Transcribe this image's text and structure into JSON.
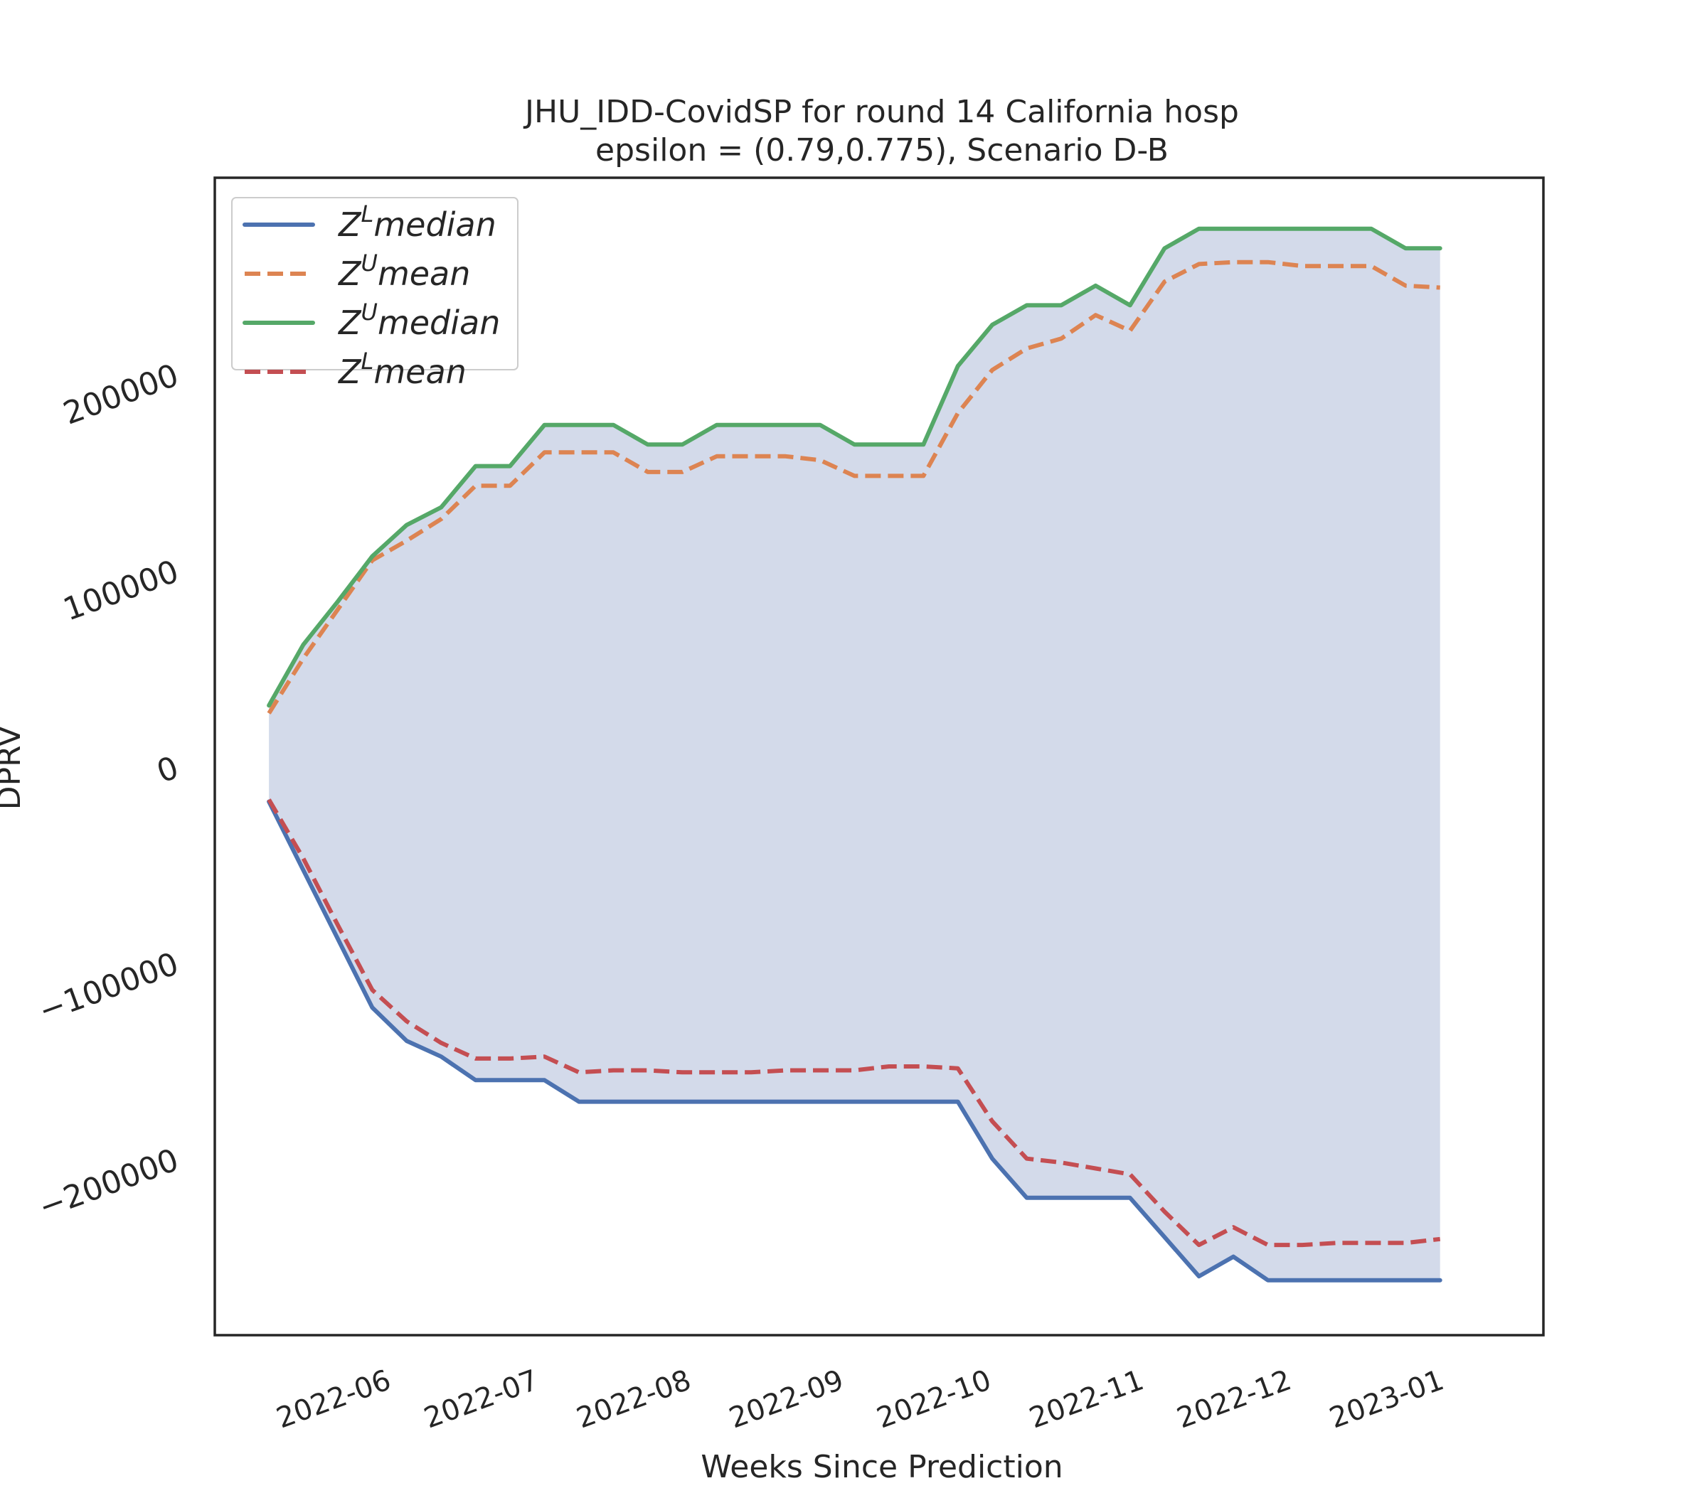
{
  "chart_data": {
    "type": "line",
    "title": "JHU_IDD-CovidSP for round 14 California  hosp",
    "subtitle": "epsilon = (0.79,0.775), Scenario D-B",
    "xlabel": "Weeks Since Prediction",
    "ylabel": "DPRV",
    "x_tick_labels": [
      "2022-06",
      "2022-07",
      "2022-08",
      "2022-09",
      "2022-10",
      "2022-11",
      "2022-12",
      "2023-01"
    ],
    "x_tick_dates": [
      "2022-06-01",
      "2022-07-01",
      "2022-08-01",
      "2022-09-01",
      "2022-10-01",
      "2022-11-01",
      "2022-12-01",
      "2023-01-01"
    ],
    "y_tick_labels": [
      "−200000",
      "−100000",
      "0",
      "100000",
      "200000"
    ],
    "y_tick_values": [
      -200000,
      -100000,
      0,
      100000,
      200000
    ],
    "xlim": [
      "2022-04-27",
      "2023-01-22"
    ],
    "ylim": [
      -290000,
      300000
    ],
    "grid": false,
    "legend_position": "upper-left",
    "x": [
      "2022-05-08",
      "2022-05-15",
      "2022-05-22",
      "2022-05-29",
      "2022-06-05",
      "2022-06-12",
      "2022-06-19",
      "2022-06-26",
      "2022-07-03",
      "2022-07-10",
      "2022-07-17",
      "2022-07-24",
      "2022-07-31",
      "2022-08-07",
      "2022-08-14",
      "2022-08-21",
      "2022-08-28",
      "2022-09-04",
      "2022-09-11",
      "2022-09-18",
      "2022-09-25",
      "2022-10-02",
      "2022-10-09",
      "2022-10-16",
      "2022-10-23",
      "2022-10-30",
      "2022-11-06",
      "2022-11-13",
      "2022-11-20",
      "2022-11-27",
      "2022-12-04",
      "2022-12-11",
      "2022-12-18",
      "2022-12-25",
      "2023-01-01"
    ],
    "series": [
      {
        "name": "Z^L median",
        "color": "#4c72b0",
        "style": "solid",
        "values": [
          -18000,
          -53000,
          -88000,
          -123000,
          -140000,
          -148000,
          -160000,
          -160000,
          -160000,
          -171000,
          -171000,
          -171000,
          -171000,
          -171000,
          -171000,
          -171000,
          -171000,
          -171000,
          -171000,
          -171000,
          -171000,
          -200000,
          -220000,
          -220000,
          -220000,
          -220000,
          -240000,
          -260000,
          -250000,
          -262000,
          -262000,
          -262000,
          -262000,
          -262000,
          -262000
        ]
      },
      {
        "name": "Z^U mean",
        "color": "#dd8452",
        "style": "dashed",
        "values": [
          27000,
          55000,
          80000,
          105000,
          115000,
          126000,
          143000,
          143000,
          160000,
          160000,
          160000,
          150000,
          150000,
          158000,
          158000,
          158000,
          156000,
          148000,
          148000,
          148000,
          180000,
          202000,
          213000,
          218000,
          230000,
          222000,
          247000,
          256000,
          257000,
          257000,
          255000,
          255000,
          255000,
          245000,
          244000
        ]
      },
      {
        "name": "Z^U median",
        "color": "#55a868",
        "style": "solid",
        "values": [
          31000,
          62000,
          84000,
          107000,
          123000,
          132000,
          153000,
          153000,
          174000,
          174000,
          174000,
          164000,
          164000,
          174000,
          174000,
          174000,
          174000,
          164000,
          164000,
          164000,
          204000,
          225000,
          235000,
          235000,
          245000,
          235000,
          264000,
          274000,
          274000,
          274000,
          274000,
          274000,
          274000,
          264000,
          264000
        ]
      },
      {
        "name": "Z^L mean",
        "color": "#c44e52",
        "style": "dashed",
        "values": [
          -17000,
          -47000,
          -81000,
          -114000,
          -130000,
          -141000,
          -149000,
          -149000,
          -148000,
          -156000,
          -155000,
          -155000,
          -156000,
          -156000,
          -156000,
          -155000,
          -155000,
          -155000,
          -153000,
          -153000,
          -154000,
          -181000,
          -200000,
          -202000,
          -205000,
          -208000,
          -227000,
          -244000,
          -235000,
          -244000,
          -244000,
          -243000,
          -243000,
          -243000,
          -241000
        ]
      }
    ],
    "fill_between": {
      "lower": "Z^L median",
      "upper": "Z^U median",
      "color": "#d3daea"
    },
    "legend": [
      {
        "base": "Z",
        "sup": "L",
        "rest": "median",
        "color": "#4c72b0",
        "style": "solid"
      },
      {
        "base": "Z",
        "sup": "U",
        "rest": "mean",
        "color": "#dd8452",
        "style": "dashed"
      },
      {
        "base": "Z",
        "sup": "U",
        "rest": "median",
        "color": "#55a868",
        "style": "solid"
      },
      {
        "base": "Z",
        "sup": "L",
        "rest": "mean",
        "color": "#c44e52",
        "style": "dashed"
      }
    ]
  }
}
